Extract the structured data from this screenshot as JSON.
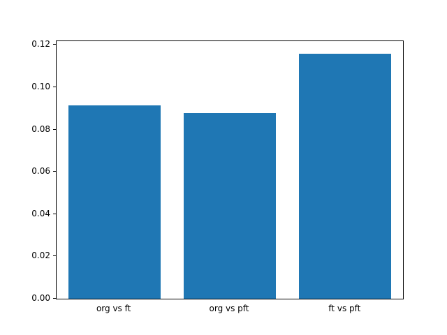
{
  "chart_data": {
    "type": "bar",
    "categories": [
      "org vs ft",
      "org vs pft",
      "ft vs pft"
    ],
    "values": [
      0.0915,
      0.0878,
      0.116
    ],
    "title": "",
    "xlabel": "",
    "ylabel": "",
    "ylim": [
      0,
      0.1218
    ],
    "yticks": [
      0.0,
      0.02,
      0.04,
      0.06,
      0.08,
      0.1,
      0.12
    ],
    "ytick_format_decimals": 2,
    "bar_color": "#1f77b4",
    "bar_width_fraction": 0.8,
    "grid": false,
    "legend": null,
    "background_color": "#ffffff",
    "axis_color": "#000000"
  }
}
